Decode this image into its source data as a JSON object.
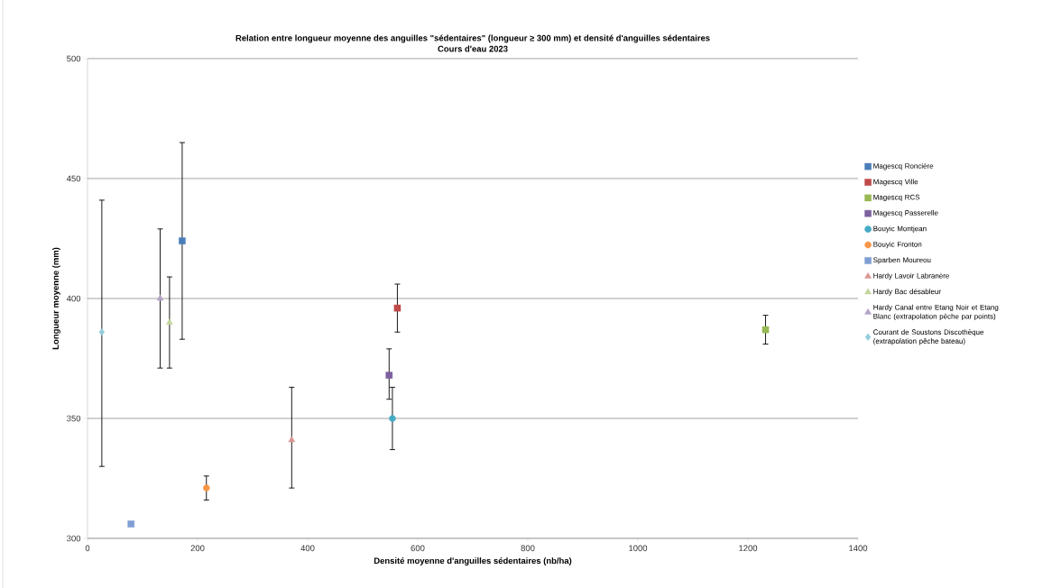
{
  "chart_data": {
    "type": "scatter",
    "title": "Relation entre longueur moyenne des anguilles \"sédentaires\" (longueur ≥ 300 mm) et densité d'anguilles sédentaires",
    "subtitle": "Cours d'eau 2023",
    "xlabel": "Densité moyenne d'anguilles sédentaires (nb/ha)",
    "ylabel": "Longueur moyenne (mm)",
    "xlim": [
      0,
      1400
    ],
    "xticks": [
      0,
      200,
      400,
      600,
      800,
      1000,
      1200,
      1400
    ],
    "ylim": [
      300,
      500
    ],
    "yticks": [
      300,
      350,
      400,
      450,
      500
    ],
    "grid": "y",
    "legend": "right",
    "series": [
      {
        "name": "Magescq Roncière",
        "color": "#4a7ebb",
        "marker": "square",
        "x": [
          172
        ],
        "values": [
          424
        ],
        "errors": [
          [
            383,
            465
          ]
        ]
      },
      {
        "name": "Magescq Ville",
        "color": "#be4b48",
        "marker": "square",
        "x": [
          563
        ],
        "values": [
          396
        ],
        "errors": [
          [
            386,
            406
          ]
        ]
      },
      {
        "name": "Magescq RCS",
        "color": "#98b954",
        "marker": "square",
        "x": [
          1232
        ],
        "values": [
          387
        ],
        "errors": [
          [
            381,
            393
          ]
        ]
      },
      {
        "name": "Magescq Passerelle",
        "color": "#7d60a0",
        "marker": "square",
        "x": [
          548
        ],
        "values": [
          368
        ],
        "errors": [
          [
            358,
            379
          ]
        ]
      },
      {
        "name": "Bouyic Montjean",
        "color": "#46aac5",
        "marker": "circle",
        "x": [
          554
        ],
        "values": [
          350
        ],
        "errors": [
          [
            337,
            363
          ]
        ]
      },
      {
        "name": "Bouyic Fronton",
        "color": "#f79646",
        "marker": "circle",
        "x": [
          216
        ],
        "values": [
          321
        ],
        "errors": [
          [
            316,
            326
          ]
        ]
      },
      {
        "name": "Sparben Moureou",
        "color": "#7f9ed3",
        "marker": "square",
        "x": [
          79
        ],
        "values": [
          306
        ]
      },
      {
        "name": "Hardy Lavoir Labranère",
        "color": "#d99694",
        "marker": "triangle",
        "x": [
          371
        ],
        "values": [
          341
        ],
        "errors": [
          [
            321,
            363
          ]
        ]
      },
      {
        "name": "Hardy Bac désableur",
        "color": "#c3d69b",
        "marker": "triangle",
        "x": [
          149
        ],
        "values": [
          390
        ],
        "errors": [
          [
            371,
            409
          ]
        ]
      },
      {
        "name": "Hardy Canal entre Etang Noir et Etang Blanc (extrapolation pêche par points)",
        "color": "#b3a2c7",
        "marker": "triangle",
        "x": [
          132
        ],
        "values": [
          400
        ],
        "errors": [
          [
            371,
            429
          ]
        ]
      },
      {
        "name": "Courant de Soustons Discothèque (extrapolation pêche bateau)",
        "color": "#93cddd",
        "marker": "diamond",
        "x": [
          26
        ],
        "values": [
          386
        ],
        "errors": [
          [
            330,
            441
          ]
        ]
      }
    ]
  }
}
